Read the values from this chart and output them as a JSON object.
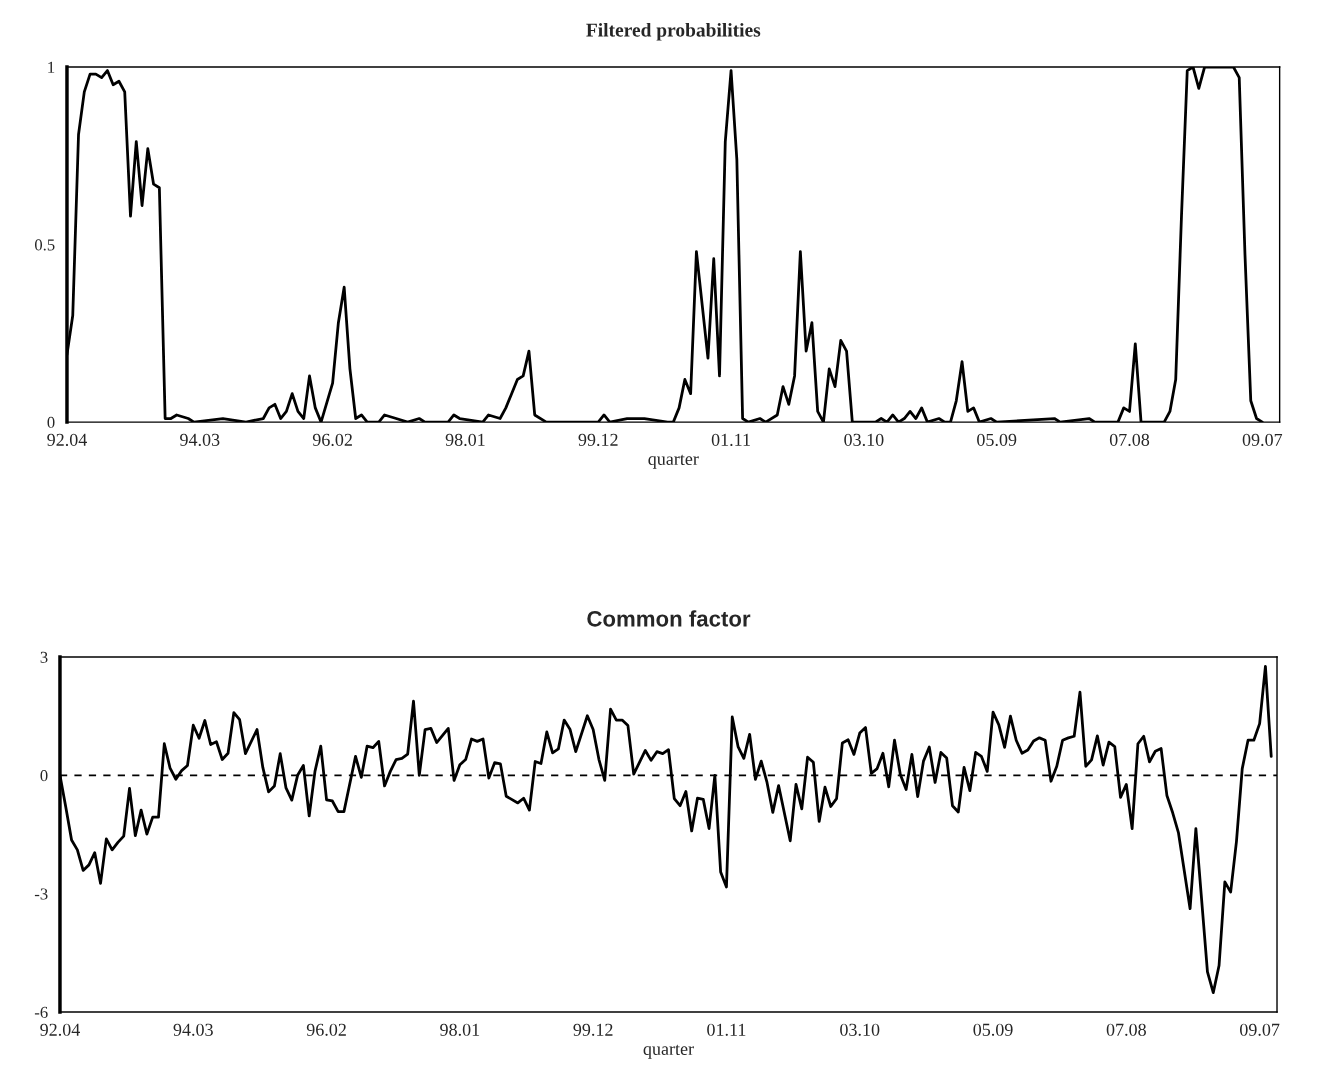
{
  "chart_data": [
    {
      "type": "line",
      "title": "Filtered probabilities",
      "xlabel": "quarter",
      "line_style": "solid",
      "xlim": [
        "1992-04",
        "2009-10"
      ],
      "ylim": [
        0,
        1
      ],
      "yticks": [
        0,
        0.5,
        1
      ],
      "xticks": [
        {
          "value": "1992-04",
          "label": "92.04"
        },
        {
          "value": "1994-03",
          "label": "94.03"
        },
        {
          "value": "1996-02",
          "label": "96.02"
        },
        {
          "value": "1998-01",
          "label": "98.01"
        },
        {
          "value": "1999-12",
          "label": "99.12"
        },
        {
          "value": "2001-11",
          "label": "01.11"
        },
        {
          "value": "2003-10",
          "label": "03.10"
        },
        {
          "value": "2005-09",
          "label": "05.09"
        },
        {
          "value": "2007-08",
          "label": "07.08"
        },
        {
          "value": "2009-07",
          "label": "09.07"
        }
      ],
      "series": [
        {
          "color": "#000000",
          "x": [
            "1992-04",
            "1992-05",
            "1992-06",
            "1992-07",
            "1992-08",
            "1992-09",
            "1992-10",
            "1992-11",
            "1992-12",
            "1993-01",
            "1993-02",
            "1993-03",
            "1993-04",
            "1993-05",
            "1993-06",
            "1993-07",
            "1993-08",
            "1993-09",
            "1993-10",
            "1993-11",
            "1994-01",
            "1994-02",
            "1994-07",
            "1994-11",
            "1995-02",
            "1995-03",
            "1995-04",
            "1995-05",
            "1995-06",
            "1995-07",
            "1995-08",
            "1995-09",
            "1995-10",
            "1995-11",
            "1995-12",
            "1996-02",
            "1996-03",
            "1996-04",
            "1996-05",
            "1996-06",
            "1996-07",
            "1996-08",
            "1996-10",
            "1996-11",
            "1997-01",
            "1997-03",
            "1997-05",
            "1997-06",
            "1997-10",
            "1997-11",
            "1997-12",
            "1998-04",
            "1998-05",
            "1998-07",
            "1998-08",
            "1998-09",
            "1998-10",
            "1998-11",
            "1998-12",
            "1999-01",
            "1999-03",
            "1999-12",
            "2000-01",
            "2000-02",
            "2000-05",
            "2000-08",
            "2000-12",
            "2001-01",
            "2001-02",
            "2001-03",
            "2001-04",
            "2001-05",
            "2001-07",
            "2001-08",
            "2001-09",
            "2001-10",
            "2001-11",
            "2001-12",
            "2002-01",
            "2002-02",
            "2002-04",
            "2002-05",
            "2002-07",
            "2002-08",
            "2002-09",
            "2002-10",
            "2002-11",
            "2002-12",
            "2003-01",
            "2003-02",
            "2003-03",
            "2003-04",
            "2003-05",
            "2003-06",
            "2003-07",
            "2003-08",
            "2003-12",
            "2004-01",
            "2004-02",
            "2004-03",
            "2004-04",
            "2004-05",
            "2004-06",
            "2004-07",
            "2004-08",
            "2004-09",
            "2004-11",
            "2004-12",
            "2005-01",
            "2005-02",
            "2005-03",
            "2005-04",
            "2005-05",
            "2005-06",
            "2005-08",
            "2005-09",
            "2006-07",
            "2006-08",
            "2007-01",
            "2007-02",
            "2007-06",
            "2007-07",
            "2007-08",
            "2007-09",
            "2007-10",
            "2007-12",
            "2008-02",
            "2008-03",
            "2008-04",
            "2008-05",
            "2008-06",
            "2008-07",
            "2008-08",
            "2008-09",
            "2009-02",
            "2009-03",
            "2009-04",
            "2009-05",
            "2009-06",
            "2009-07"
          ],
          "values": [
            0.19,
            0.3,
            0.81,
            0.93,
            0.98,
            0.98,
            0.97,
            0.99,
            0.95,
            0.96,
            0.93,
            0.58,
            0.79,
            0.61,
            0.77,
            0.67,
            0.66,
            0.01,
            0.01,
            0.02,
            0.01,
            0,
            0.01,
            0,
            0.01,
            0.04,
            0.05,
            0.01,
            0.03,
            0.08,
            0.03,
            0.01,
            0.13,
            0.04,
            0,
            0.11,
            0.28,
            0.38,
            0.15,
            0.01,
            0.02,
            0,
            0,
            0.02,
            0.01,
            0,
            0.01,
            0,
            0,
            0.02,
            0.01,
            0,
            0.02,
            0.01,
            0.04,
            0.08,
            0.12,
            0.13,
            0.2,
            0.02,
            0,
            0,
            0.02,
            0,
            0.01,
            0.01,
            0,
            0,
            0.04,
            0.12,
            0.08,
            0.48,
            0.18,
            0.46,
            0.13,
            0.79,
            0.99,
            0.74,
            0.01,
            0,
            0.01,
            0,
            0.02,
            0.1,
            0.05,
            0.13,
            0.48,
            0.2,
            0.28,
            0.03,
            0,
            0.15,
            0.1,
            0.23,
            0.2,
            0,
            0,
            0.01,
            0,
            0.02,
            0,
            0.01,
            0.03,
            0.01,
            0.04,
            0,
            0.01,
            0,
            0,
            0.06,
            0.17,
            0.03,
            0.04,
            0,
            0.01,
            0,
            0.01,
            0,
            0.01,
            0,
            0,
            0.04,
            0.03,
            0.22,
            0,
            0,
            0,
            0.03,
            0.12,
            0.58,
            0.99,
            1,
            0.94,
            1,
            1,
            0.97,
            0.47,
            0.06,
            0.01,
            0
          ]
        }
      ]
    },
    {
      "type": "line",
      "title": "Common factor",
      "xlabel": "quarter",
      "line_style": "solid",
      "xlim": [
        "1992-04",
        "2009-10"
      ],
      "ylim": [
        -6,
        3
      ],
      "yticks": [
        -6,
        -3,
        0,
        3
      ],
      "xticks": [
        {
          "value": "1992-04",
          "label": "92.04"
        },
        {
          "value": "1994-03",
          "label": "94.03"
        },
        {
          "value": "1996-02",
          "label": "96.02"
        },
        {
          "value": "1998-01",
          "label": "98.01"
        },
        {
          "value": "1999-12",
          "label": "99.12"
        },
        {
          "value": "2001-11",
          "label": "01.11"
        },
        {
          "value": "2003-10",
          "label": "03.10"
        },
        {
          "value": "2005-09",
          "label": "05.09"
        },
        {
          "value": "2007-08",
          "label": "07.08"
        },
        {
          "value": "2009-07",
          "label": "09.07"
        }
      ],
      "ref_lines": [
        {
          "axis": "y",
          "value": 0,
          "color": "#000000",
          "line_style": "dashed"
        }
      ],
      "series": [
        {
          "color": "#000000",
          "x": [
            "1992-04",
            "1992-05",
            "1992-06",
            "1992-07",
            "1992-08",
            "1992-09",
            "1992-10",
            "1992-11",
            "1992-12",
            "1993-01",
            "1993-02",
            "1993-03",
            "1993-04",
            "1993-05",
            "1993-06",
            "1993-07",
            "1993-08",
            "1993-09",
            "1993-10",
            "1993-11",
            "1993-12",
            "1994-01",
            "1994-02",
            "1994-03",
            "1994-04",
            "1994-05",
            "1994-06",
            "1994-07",
            "1994-08",
            "1994-09",
            "1994-10",
            "1994-11",
            "1994-12",
            "1995-02",
            "1995-03",
            "1995-04",
            "1995-05",
            "1995-06",
            "1995-07",
            "1995-08",
            "1995-09",
            "1995-10",
            "1995-11",
            "1995-12",
            "1996-01",
            "1996-02",
            "1996-03",
            "1996-04",
            "1996-05",
            "1996-07",
            "1996-08",
            "1996-09",
            "1996-10",
            "1996-11",
            "1996-12",
            "1997-01",
            "1997-02",
            "1997-03",
            "1997-04",
            "1997-05",
            "1997-06",
            "1997-07",
            "1997-08",
            "1997-09",
            "1997-11",
            "1997-12",
            "1998-01",
            "1998-02",
            "1998-03",
            "1998-04",
            "1998-05",
            "1998-06",
            "1998-07",
            "1998-08",
            "1998-09",
            "1998-11",
            "1998-12",
            "1999-01",
            "1999-02",
            "1999-03",
            "1999-04",
            "1999-05",
            "1999-06",
            "1999-07",
            "1999-08",
            "1999-09",
            "1999-11",
            "1999-12",
            "2000-01",
            "2000-02",
            "2000-03",
            "2000-04",
            "2000-05",
            "2000-06",
            "2000-07",
            "2000-09",
            "2000-10",
            "2000-11",
            "2000-12",
            "2001-01",
            "2001-02",
            "2001-03",
            "2001-04",
            "2001-05",
            "2001-06",
            "2001-07",
            "2001-08",
            "2001-09",
            "2001-10",
            "2001-11",
            "2001-12",
            "2002-01",
            "2002-02",
            "2002-03",
            "2002-04",
            "2002-05",
            "2002-06",
            "2002-07",
            "2002-08",
            "2002-10",
            "2002-11",
            "2002-12",
            "2003-01",
            "2003-02",
            "2003-03",
            "2003-04",
            "2003-05",
            "2003-06",
            "2003-07",
            "2003-08",
            "2003-09",
            "2003-10",
            "2003-11",
            "2003-12",
            "2004-01",
            "2004-02",
            "2004-03",
            "2004-04",
            "2004-05",
            "2004-06",
            "2004-07",
            "2004-08",
            "2004-09",
            "2004-10",
            "2004-11",
            "2004-12",
            "2005-01",
            "2005-02",
            "2005-03",
            "2005-04",
            "2005-05",
            "2005-06",
            "2005-07",
            "2005-08",
            "2005-09",
            "2005-10",
            "2005-11",
            "2005-12",
            "2006-01",
            "2006-02",
            "2006-03",
            "2006-04",
            "2006-05",
            "2006-06",
            "2006-07",
            "2006-08",
            "2006-09",
            "2006-10",
            "2006-11",
            "2006-12",
            "2007-01",
            "2007-02",
            "2007-03",
            "2007-04",
            "2007-05",
            "2007-06",
            "2007-07",
            "2007-08",
            "2007-09",
            "2007-10",
            "2007-11",
            "2007-12",
            "2008-01",
            "2008-02",
            "2008-03",
            "2008-04",
            "2008-05",
            "2008-07",
            "2008-08",
            "2008-10",
            "2008-11",
            "2008-12",
            "2009-01",
            "2009-02",
            "2009-03",
            "2009-04",
            "2009-05",
            "2009-06",
            "2009-07",
            "2009-08",
            "2009-09"
          ],
          "values": [
            0,
            -0.8,
            -1.64,
            -1.89,
            -2.41,
            -2.27,
            -1.96,
            -2.74,
            -1.61,
            -1.89,
            -1.7,
            -1.54,
            -0.33,
            -1.53,
            -0.88,
            -1.49,
            -1.06,
            -1.06,
            0.8,
            0.18,
            -0.1,
            0.12,
            0.25,
            1.27,
            0.94,
            1.39,
            0.78,
            0.85,
            0.4,
            0.56,
            1.59,
            1.41,
            0.55,
            1.16,
            0.2,
            -0.42,
            -0.27,
            0.55,
            -0.32,
            -0.63,
            0,
            0.25,
            -1.03,
            0.1,
            0.74,
            -0.62,
            -0.65,
            -0.92,
            -0.92,
            0.48,
            -0.05,
            0.74,
            0.7,
            0.86,
            -0.27,
            0.1,
            0.4,
            0.43,
            0.54,
            1.88,
            0,
            1.16,
            1.19,
            0.83,
            1.19,
            -0.13,
            0.27,
            0.4,
            0.92,
            0.86,
            0.92,
            -0.07,
            0.32,
            0.29,
            -0.53,
            -0.7,
            -0.58,
            -0.88,
            0.35,
            0.3,
            1.1,
            0.57,
            0.67,
            1.4,
            1.17,
            0.6,
            1.51,
            1.16,
            0.4,
            -0.13,
            1.68,
            1.4,
            1.4,
            1.26,
            0.03,
            0.63,
            0.38,
            0.6,
            0.55,
            0.65,
            -0.59,
            -0.77,
            -0.41,
            -1.41,
            -0.58,
            -0.61,
            -1.35,
            0,
            -2.45,
            -2.83,
            1.48,
            0.73,
            0.43,
            1.04,
            -0.1,
            0.36,
            -0.18,
            -0.94,
            -0.26,
            -1.66,
            -0.23,
            -0.85,
            0.46,
            0.33,
            -1.17,
            -0.3,
            -0.79,
            -0.59,
            0.82,
            0.9,
            0.53,
            1.07,
            1.21,
            0.05,
            0.17,
            0.56,
            -0.29,
            0.89,
            0.02,
            -0.36,
            0.53,
            -0.54,
            0.36,
            0.72,
            -0.18,
            0.58,
            0.44,
            -0.77,
            -0.93,
            0.2,
            -0.39,
            0.58,
            0.48,
            0.1,
            1.6,
            1.28,
            0.71,
            1.5,
            0.89,
            0.56,
            0.64,
            0.87,
            0.95,
            0.89,
            -0.15,
            0.23,
            0.89,
            0.95,
            0.99,
            2.11,
            0.23,
            0.39,
            1.0,
            0.26,
            0.84,
            0.73,
            -0.56,
            -0.23,
            -1.35,
            0.8,
            0.99,
            0.34,
            0.61,
            0.68,
            -0.51,
            -0.95,
            -1.46,
            -3.38,
            -1.35,
            -4.98,
            -5.51,
            -4.82,
            -2.7,
            -2.96,
            -1.68,
            0.17,
            0.89,
            0.89,
            1.31,
            2.76,
            0.48
          ]
        }
      ]
    }
  ]
}
